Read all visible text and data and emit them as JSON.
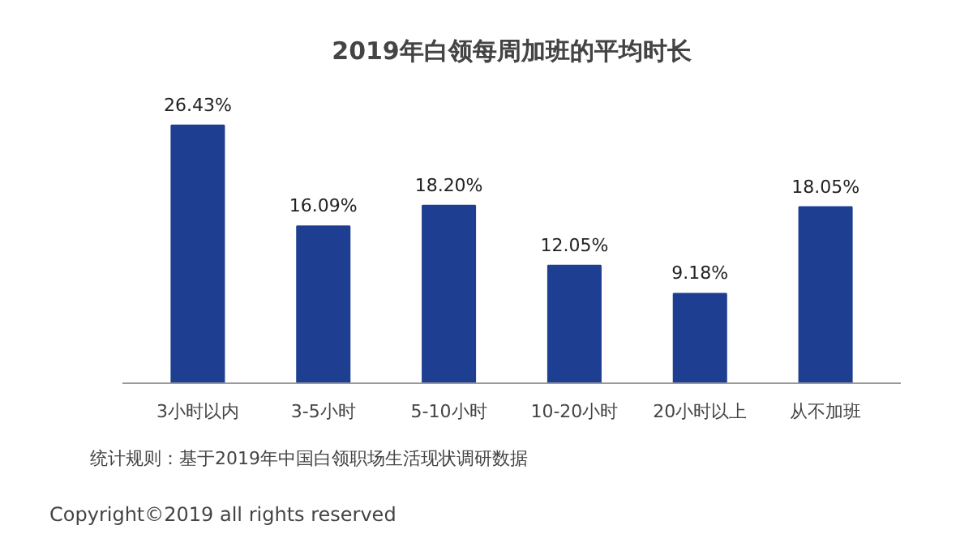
{
  "chart_data": {
    "type": "bar",
    "title": "2019年白领每周加班的平均时长",
    "categories": [
      "3小时以内",
      "3-5小时",
      "5-10小时",
      "10-20小时",
      "20小时以上",
      "从不加班"
    ],
    "values": [
      26.43,
      16.09,
      18.2,
      12.05,
      9.18,
      18.05
    ],
    "value_labels": [
      "26.43%",
      "16.09%",
      "18.20%",
      "12.05%",
      "9.18%",
      "18.05%"
    ],
    "color": "#1e3f91",
    "grid": false,
    "annotations": [
      "统计规则：基于2019年中国白领职场生活现状调研数据",
      "Copyright©2019 all rights reserved"
    ]
  }
}
